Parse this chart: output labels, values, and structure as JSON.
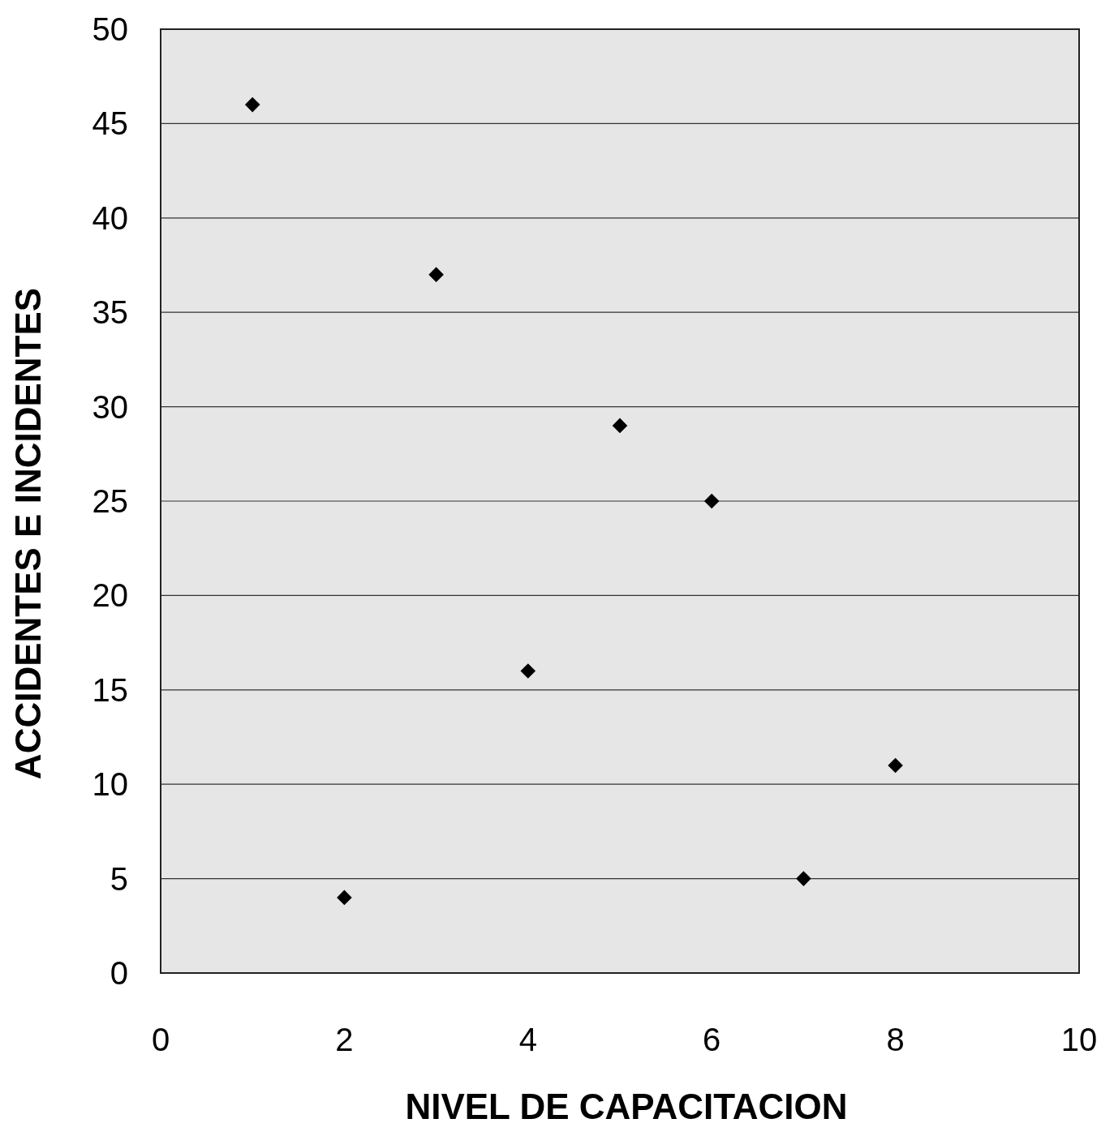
{
  "chart_data": {
    "type": "scatter",
    "xlabel": "NIVEL DE CAPACITACION",
    "ylabel": "ACCIDENTES E INCIDENTES",
    "x": [
      1,
      2,
      3,
      4,
      5,
      6,
      7,
      8
    ],
    "values": [
      46,
      4,
      37,
      16,
      29,
      25,
      5,
      11
    ],
    "color": "#000000",
    "xlim": [
      0,
      10
    ],
    "xticks": [
      0,
      2,
      4,
      6,
      8,
      10
    ],
    "ylim": [
      0,
      50
    ],
    "yticks": [
      0,
      5,
      10,
      15,
      20,
      25,
      30,
      35,
      40,
      45,
      50
    ],
    "grid": "y",
    "marker": "diamond"
  }
}
